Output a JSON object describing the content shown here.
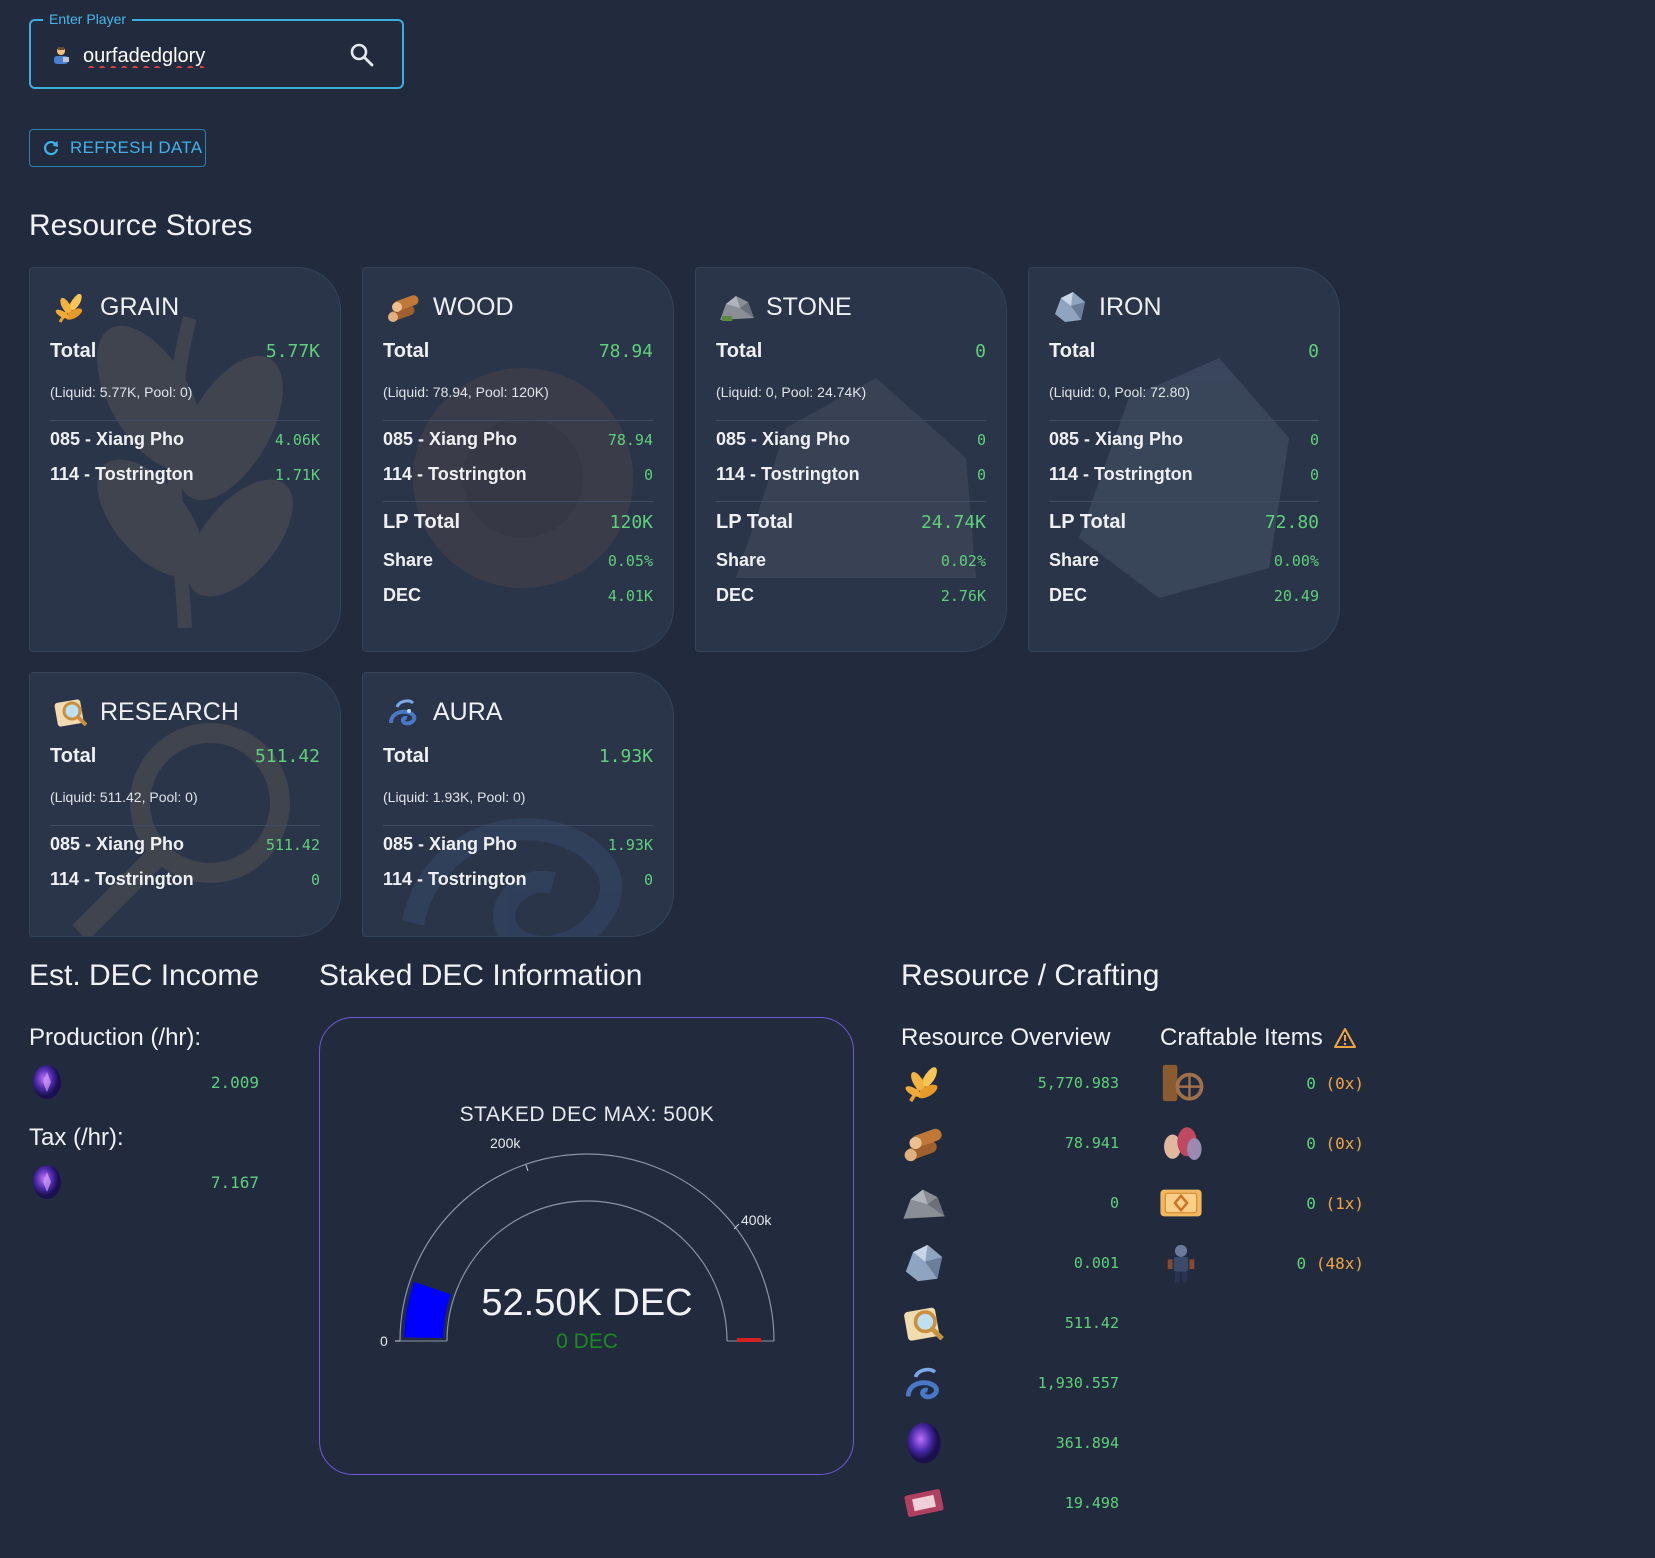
{
  "search": {
    "legend": "Enter Player",
    "value": "ourfadedglory"
  },
  "refresh": {
    "label": "REFRESH DATA"
  },
  "resource_stores": {
    "title": "Resource Stores",
    "cards": [
      {
        "name": "GRAIN",
        "total_label": "Total",
        "total": "5.77K",
        "liquid": "(Liquid: 5.77K, Pool: 0)",
        "plots": [
          {
            "label": "085 - Xiang Pho",
            "value": "4.06K"
          },
          {
            "label": "114 - Tostrington",
            "value": "1.71K"
          }
        ]
      },
      {
        "name": "WOOD",
        "total_label": "Total",
        "total": "78.94",
        "liquid": "(Liquid: 78.94, Pool: 120K)",
        "plots": [
          {
            "label": "085 - Xiang Pho",
            "value": "78.94"
          },
          {
            "label": "114 - Tostrington",
            "value": "0"
          }
        ],
        "lp": {
          "total_label": "LP Total",
          "total": "120K",
          "share_label": "Share",
          "share": "0.05%",
          "dec_label": "DEC",
          "dec": "4.01K"
        }
      },
      {
        "name": "STONE",
        "total_label": "Total",
        "total": "0",
        "liquid": "(Liquid: 0, Pool: 24.74K)",
        "plots": [
          {
            "label": "085 - Xiang Pho",
            "value": "0"
          },
          {
            "label": "114 - Tostrington",
            "value": "0"
          }
        ],
        "lp": {
          "total_label": "LP Total",
          "total": "24.74K",
          "share_label": "Share",
          "share": "0.02%",
          "dec_label": "DEC",
          "dec": "2.76K"
        }
      },
      {
        "name": "IRON",
        "total_label": "Total",
        "total": "0",
        "liquid": "(Liquid: 0, Pool: 72.80)",
        "plots": [
          {
            "label": "085 - Xiang Pho",
            "value": "0"
          },
          {
            "label": "114 - Tostrington",
            "value": "0"
          }
        ],
        "lp": {
          "total_label": "LP Total",
          "total": "72.80",
          "share_label": "Share",
          "share": "0.00%",
          "dec_label": "DEC",
          "dec": "20.49"
        }
      },
      {
        "name": "RESEARCH",
        "total_label": "Total",
        "total": "511.42",
        "liquid": "(Liquid: 511.42, Pool: 0)",
        "plots": [
          {
            "label": "085 - Xiang Pho",
            "value": "511.42"
          },
          {
            "label": "114 - Tostrington",
            "value": "0"
          }
        ]
      },
      {
        "name": "AURA",
        "total_label": "Total",
        "total": "1.93K",
        "liquid": "(Liquid: 1.93K, Pool: 0)",
        "plots": [
          {
            "label": "085 - Xiang Pho",
            "value": "1.93K"
          },
          {
            "label": "114 - Tostrington",
            "value": "0"
          }
        ]
      }
    ]
  },
  "income": {
    "title": "Est. DEC Income",
    "production_label": "Production (/hr):",
    "production": "2.009",
    "tax_label": "Tax (/hr):",
    "tax": "7.167"
  },
  "staked": {
    "title": "Staked DEC Information",
    "gauge_title": "STAKED DEC MAX: 500K",
    "main_value": "52.50K DEC",
    "sub_value": "0 DEC",
    "ticks": [
      "0",
      "200k",
      "400k"
    ],
    "staked_fraction": 0.105,
    "accent": "#0000ff",
    "marker_color": "#d42020"
  },
  "crafting": {
    "title": "Resource / Crafting",
    "overview_title": "Resource Overview",
    "overview": [
      {
        "icon": "grain-icon",
        "value": "5,770.983"
      },
      {
        "icon": "wood-icon",
        "value": "78.941"
      },
      {
        "icon": "stone-icon",
        "value": "0"
      },
      {
        "icon": "iron-icon",
        "value": "0.001"
      },
      {
        "icon": "research-icon",
        "value": "511.42"
      },
      {
        "icon": "aura-icon",
        "value": "1,930.557"
      },
      {
        "icon": "dec-orb-icon",
        "value": "361.894"
      },
      {
        "icon": "voucher-icon",
        "value": "19.498"
      }
    ],
    "craftable_title": "Craftable Items",
    "craftable": [
      {
        "icon": "cart-icon",
        "value": "0",
        "count": "(0x)"
      },
      {
        "icon": "seeds-icon",
        "value": "0",
        "count": "(0x)"
      },
      {
        "icon": "ticket-icon",
        "value": "0",
        "count": "(1x)"
      },
      {
        "icon": "figure-icon",
        "value": "0",
        "count": "(48x)"
      }
    ]
  }
}
